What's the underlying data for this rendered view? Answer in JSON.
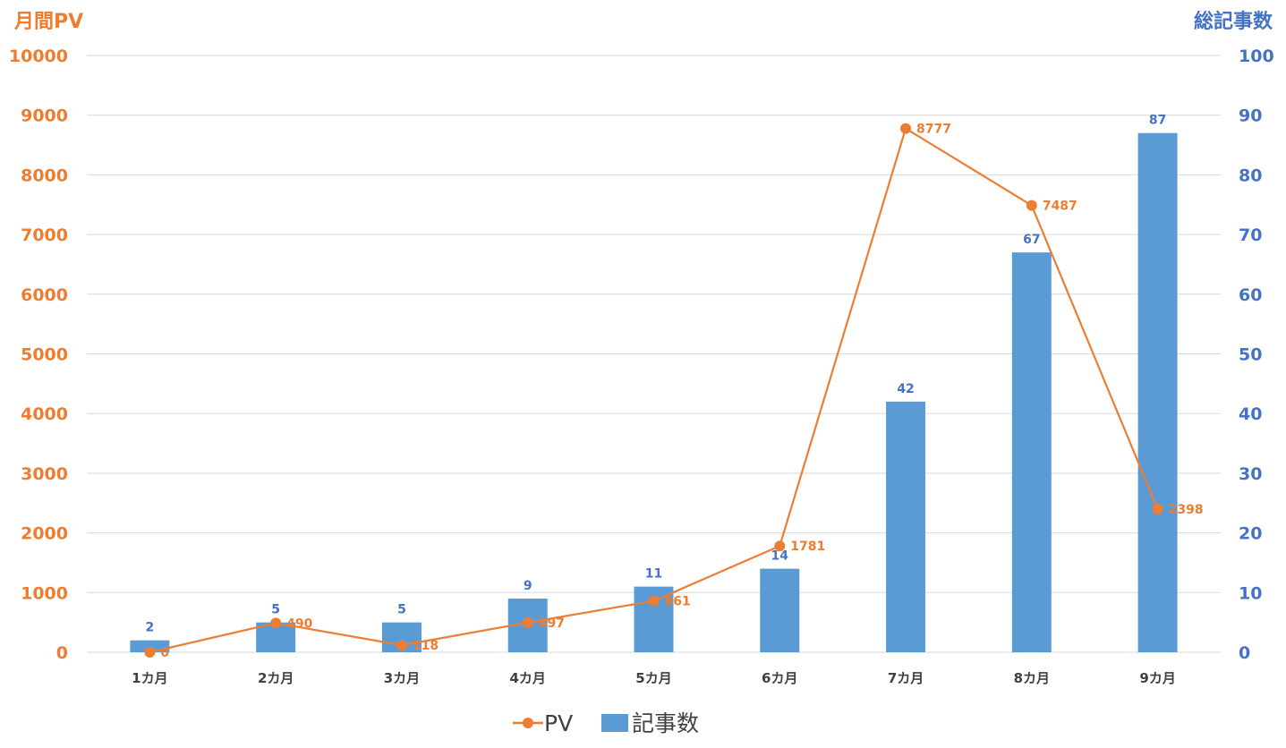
{
  "chart_data": {
    "type": "bar",
    "categories": [
      "1カ月",
      "2カ月",
      "3カ月",
      "4カ月",
      "5カ月",
      "6カ月",
      "7カ月",
      "8カ月",
      "9カ月"
    ],
    "series": [
      {
        "name": "記事数",
        "type": "bar",
        "axis": "right",
        "values": [
          2,
          5,
          5,
          9,
          11,
          14,
          42,
          67,
          87
        ]
      },
      {
        "name": "PV",
        "type": "line",
        "axis": "left",
        "values": [
          0,
          490,
          118,
          497,
          861,
          1781,
          8777,
          7487,
          2398
        ]
      }
    ],
    "ylabel_left": "月間PV",
    "ylabel_right": "総記事数",
    "ylim_left": [
      0,
      10000
    ],
    "ylim_right": [
      0,
      100
    ],
    "yticks_left": [
      0,
      1000,
      2000,
      3000,
      4000,
      5000,
      6000,
      7000,
      8000,
      9000,
      10000
    ],
    "yticks_right": [
      0,
      10,
      20,
      30,
      40,
      50,
      60,
      70,
      80,
      90,
      100
    ],
    "grid": true,
    "legend_position": "bottom",
    "colors": {
      "pv": "#ED7D31",
      "articles": "#5B9BD5",
      "left_axis": "#ED7D31",
      "right_axis": "#4472C4",
      "grid": "#D9D9D9"
    }
  }
}
